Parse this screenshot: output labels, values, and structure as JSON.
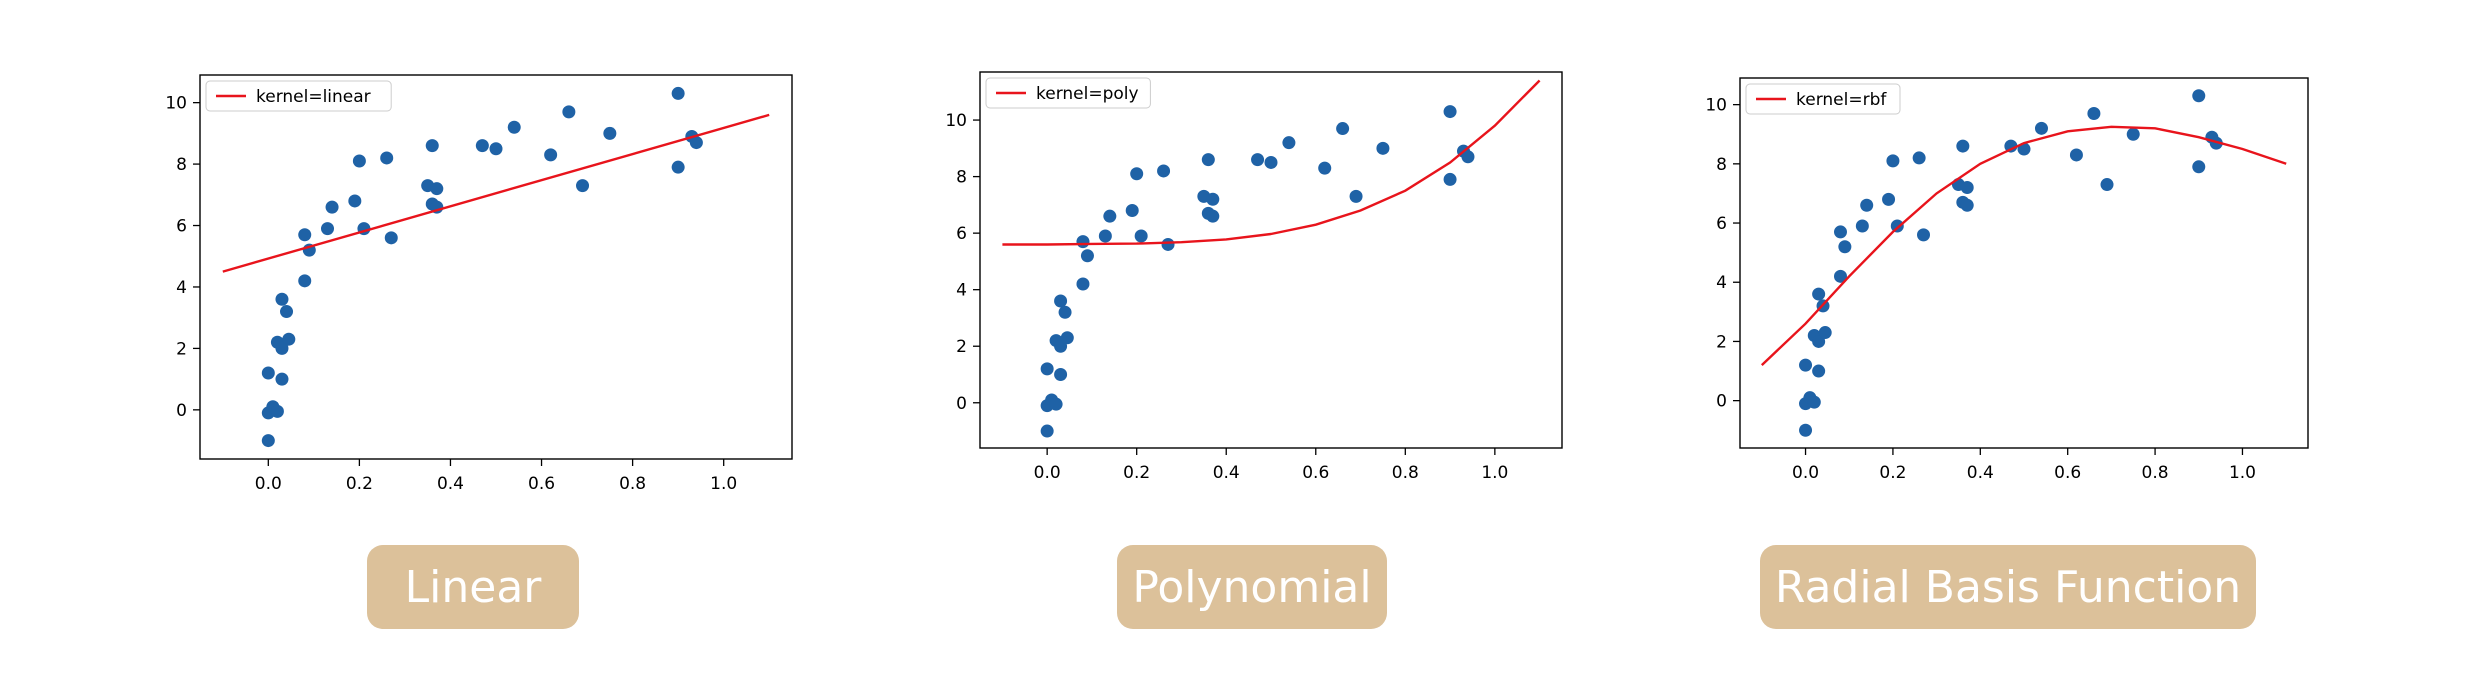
{
  "chart_data": [
    {
      "type": "scatter",
      "kernel": "linear",
      "legend": "kernel=linear",
      "legend_loc": "upper-left",
      "caption": "Linear",
      "xlim": [
        -0.15,
        1.15
      ],
      "ylim": [
        -1.6,
        10.9
      ],
      "xticks": [
        0.0,
        0.2,
        0.4,
        0.6,
        0.8,
        1.0
      ],
      "xtick_labels": [
        "0.0",
        "0.2",
        "0.4",
        "0.6",
        "0.8",
        "1.0"
      ],
      "yticks": [
        0,
        2,
        4,
        6,
        8,
        10
      ],
      "ytick_labels": [
        "0",
        "2",
        "4",
        "6",
        "8",
        "10"
      ],
      "points": [
        {
          "x": 0.0,
          "y": -1.0
        },
        {
          "x": 0.0,
          "y": -0.1
        },
        {
          "x": 0.01,
          "y": 0.1
        },
        {
          "x": 0.0,
          "y": 1.2
        },
        {
          "x": 0.03,
          "y": 1.0
        },
        {
          "x": 0.02,
          "y": -0.05
        },
        {
          "x": 0.02,
          "y": 2.2
        },
        {
          "x": 0.03,
          "y": 2.0
        },
        {
          "x": 0.045,
          "y": 2.3
        },
        {
          "x": 0.03,
          "y": 3.6
        },
        {
          "x": 0.04,
          "y": 3.2
        },
        {
          "x": 0.08,
          "y": 4.2
        },
        {
          "x": 0.09,
          "y": 5.2
        },
        {
          "x": 0.08,
          "y": 5.7
        },
        {
          "x": 0.13,
          "y": 5.9
        },
        {
          "x": 0.14,
          "y": 6.6
        },
        {
          "x": 0.19,
          "y": 6.8
        },
        {
          "x": 0.2,
          "y": 8.1
        },
        {
          "x": 0.21,
          "y": 5.9
        },
        {
          "x": 0.26,
          "y": 8.2
        },
        {
          "x": 0.27,
          "y": 5.6
        },
        {
          "x": 0.36,
          "y": 8.6
        },
        {
          "x": 0.35,
          "y": 7.3
        },
        {
          "x": 0.37,
          "y": 7.2
        },
        {
          "x": 0.36,
          "y": 6.7
        },
        {
          "x": 0.37,
          "y": 6.6
        },
        {
          "x": 0.47,
          "y": 8.6
        },
        {
          "x": 0.5,
          "y": 8.5
        },
        {
          "x": 0.54,
          "y": 9.2
        },
        {
          "x": 0.62,
          "y": 8.3
        },
        {
          "x": 0.66,
          "y": 9.7
        },
        {
          "x": 0.69,
          "y": 7.3
        },
        {
          "x": 0.75,
          "y": 9.0
        },
        {
          "x": 0.9,
          "y": 10.3
        },
        {
          "x": 0.9,
          "y": 7.9
        },
        {
          "x": 0.93,
          "y": 8.9
        },
        {
          "x": 0.94,
          "y": 8.7
        }
      ],
      "curve": [
        {
          "x": -0.1,
          "y": 4.5
        },
        {
          "x": 1.1,
          "y": 9.6
        }
      ]
    },
    {
      "type": "scatter",
      "kernel": "poly",
      "legend": "kernel=poly",
      "legend_loc": "upper-left",
      "caption": "Polynomial",
      "xlim": [
        -0.15,
        1.15
      ],
      "ylim": [
        -1.6,
        11.7
      ],
      "xticks": [
        0.0,
        0.2,
        0.4,
        0.6,
        0.8,
        1.0
      ],
      "xtick_labels": [
        "0.0",
        "0.2",
        "0.4",
        "0.6",
        "0.8",
        "1.0"
      ],
      "yticks": [
        0,
        2,
        4,
        6,
        8,
        10
      ],
      "ytick_labels": [
        "0",
        "2",
        "4",
        "6",
        "8",
        "10"
      ],
      "points": [
        {
          "x": 0.0,
          "y": -1.0
        },
        {
          "x": 0.0,
          "y": -0.1
        },
        {
          "x": 0.01,
          "y": 0.1
        },
        {
          "x": 0.0,
          "y": 1.2
        },
        {
          "x": 0.03,
          "y": 1.0
        },
        {
          "x": 0.02,
          "y": -0.05
        },
        {
          "x": 0.02,
          "y": 2.2
        },
        {
          "x": 0.03,
          "y": 2.0
        },
        {
          "x": 0.045,
          "y": 2.3
        },
        {
          "x": 0.03,
          "y": 3.6
        },
        {
          "x": 0.04,
          "y": 3.2
        },
        {
          "x": 0.08,
          "y": 4.2
        },
        {
          "x": 0.09,
          "y": 5.2
        },
        {
          "x": 0.08,
          "y": 5.7
        },
        {
          "x": 0.13,
          "y": 5.9
        },
        {
          "x": 0.14,
          "y": 6.6
        },
        {
          "x": 0.19,
          "y": 6.8
        },
        {
          "x": 0.2,
          "y": 8.1
        },
        {
          "x": 0.21,
          "y": 5.9
        },
        {
          "x": 0.26,
          "y": 8.2
        },
        {
          "x": 0.27,
          "y": 5.6
        },
        {
          "x": 0.36,
          "y": 8.6
        },
        {
          "x": 0.35,
          "y": 7.3
        },
        {
          "x": 0.37,
          "y": 7.2
        },
        {
          "x": 0.36,
          "y": 6.7
        },
        {
          "x": 0.37,
          "y": 6.6
        },
        {
          "x": 0.47,
          "y": 8.6
        },
        {
          "x": 0.5,
          "y": 8.5
        },
        {
          "x": 0.54,
          "y": 9.2
        },
        {
          "x": 0.62,
          "y": 8.3
        },
        {
          "x": 0.66,
          "y": 9.7
        },
        {
          "x": 0.69,
          "y": 7.3
        },
        {
          "x": 0.75,
          "y": 9.0
        },
        {
          "x": 0.9,
          "y": 10.3
        },
        {
          "x": 0.9,
          "y": 7.9
        },
        {
          "x": 0.93,
          "y": 8.9
        },
        {
          "x": 0.94,
          "y": 8.7
        }
      ],
      "curve": [
        {
          "x": -0.1,
          "y": 5.6
        },
        {
          "x": 0.0,
          "y": 5.6
        },
        {
          "x": 0.1,
          "y": 5.62
        },
        {
          "x": 0.2,
          "y": 5.63
        },
        {
          "x": 0.3,
          "y": 5.68
        },
        {
          "x": 0.4,
          "y": 5.78
        },
        {
          "x": 0.5,
          "y": 5.97
        },
        {
          "x": 0.6,
          "y": 6.3
        },
        {
          "x": 0.7,
          "y": 6.8
        },
        {
          "x": 0.8,
          "y": 7.5
        },
        {
          "x": 0.9,
          "y": 8.5
        },
        {
          "x": 1.0,
          "y": 9.8
        },
        {
          "x": 1.1,
          "y": 11.4
        }
      ]
    },
    {
      "type": "scatter",
      "kernel": "rbf",
      "legend": "kernel=rbf",
      "legend_loc": "upper-left",
      "caption": "Radial Basis Function",
      "xlim": [
        -0.15,
        1.15
      ],
      "ylim": [
        -1.6,
        10.9
      ],
      "xticks": [
        0.0,
        0.2,
        0.4,
        0.6,
        0.8,
        1.0
      ],
      "xtick_labels": [
        "0.0",
        "0.2",
        "0.4",
        "0.6",
        "0.8",
        "1.0"
      ],
      "yticks": [
        0,
        2,
        4,
        6,
        8,
        10
      ],
      "ytick_labels": [
        "0",
        "2",
        "4",
        "6",
        "8",
        "10"
      ],
      "points": [
        {
          "x": 0.0,
          "y": -1.0
        },
        {
          "x": 0.0,
          "y": -0.1
        },
        {
          "x": 0.01,
          "y": 0.1
        },
        {
          "x": 0.0,
          "y": 1.2
        },
        {
          "x": 0.03,
          "y": 1.0
        },
        {
          "x": 0.02,
          "y": -0.05
        },
        {
          "x": 0.02,
          "y": 2.2
        },
        {
          "x": 0.03,
          "y": 2.0
        },
        {
          "x": 0.045,
          "y": 2.3
        },
        {
          "x": 0.03,
          "y": 3.6
        },
        {
          "x": 0.04,
          "y": 3.2
        },
        {
          "x": 0.08,
          "y": 4.2
        },
        {
          "x": 0.09,
          "y": 5.2
        },
        {
          "x": 0.08,
          "y": 5.7
        },
        {
          "x": 0.13,
          "y": 5.9
        },
        {
          "x": 0.14,
          "y": 6.6
        },
        {
          "x": 0.19,
          "y": 6.8
        },
        {
          "x": 0.2,
          "y": 8.1
        },
        {
          "x": 0.21,
          "y": 5.9
        },
        {
          "x": 0.26,
          "y": 8.2
        },
        {
          "x": 0.27,
          "y": 5.6
        },
        {
          "x": 0.36,
          "y": 8.6
        },
        {
          "x": 0.35,
          "y": 7.3
        },
        {
          "x": 0.37,
          "y": 7.2
        },
        {
          "x": 0.36,
          "y": 6.7
        },
        {
          "x": 0.37,
          "y": 6.6
        },
        {
          "x": 0.47,
          "y": 8.6
        },
        {
          "x": 0.5,
          "y": 8.5
        },
        {
          "x": 0.54,
          "y": 9.2
        },
        {
          "x": 0.62,
          "y": 8.3
        },
        {
          "x": 0.66,
          "y": 9.7
        },
        {
          "x": 0.69,
          "y": 7.3
        },
        {
          "x": 0.75,
          "y": 9.0
        },
        {
          "x": 0.9,
          "y": 10.3
        },
        {
          "x": 0.9,
          "y": 7.9
        },
        {
          "x": 0.93,
          "y": 8.9
        },
        {
          "x": 0.94,
          "y": 8.7
        }
      ],
      "curve": [
        {
          "x": -0.1,
          "y": 1.2
        },
        {
          "x": 0.0,
          "y": 2.6
        },
        {
          "x": 0.1,
          "y": 4.2
        },
        {
          "x": 0.2,
          "y": 5.7
        },
        {
          "x": 0.3,
          "y": 7.0
        },
        {
          "x": 0.4,
          "y": 8.0
        },
        {
          "x": 0.5,
          "y": 8.7
        },
        {
          "x": 0.6,
          "y": 9.1
        },
        {
          "x": 0.7,
          "y": 9.25
        },
        {
          "x": 0.8,
          "y": 9.2
        },
        {
          "x": 0.9,
          "y": 8.9
        },
        {
          "x": 1.0,
          "y": 8.5
        },
        {
          "x": 1.1,
          "y": 8.0
        }
      ]
    }
  ],
  "colors": {
    "points": "#1f62a6",
    "curve": "#e8141c",
    "caption_bg": "#dcc19a",
    "caption_text": "#ffffff"
  }
}
